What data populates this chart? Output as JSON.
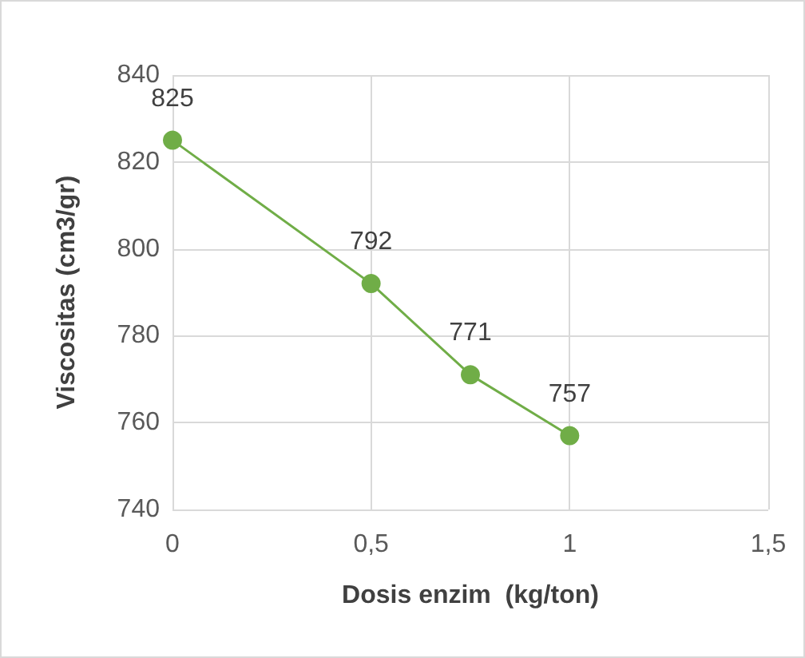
{
  "chart_data": {
    "type": "line",
    "xlabel": "Dosis enzim  (kg/ton)",
    "ylabel": "Viscositas (cm3/gr)",
    "x": [
      0,
      0.5,
      0.75,
      1
    ],
    "series": [
      {
        "color": "#70ad47",
        "values": [
          825,
          792,
          771,
          757
        ]
      }
    ],
    "xlim": [
      0,
      1.5
    ],
    "xticks": [
      0,
      {
        "value": 0.5,
        "label": "0,5"
      },
      1,
      {
        "value": 1.5,
        "label": "1,5"
      }
    ],
    "ylim": [
      740,
      840
    ],
    "yticks": [
      740,
      760,
      780,
      800,
      820,
      840
    ],
    "grid": true,
    "marker": "circle",
    "line_style": "solid",
    "data_labels": true
  }
}
